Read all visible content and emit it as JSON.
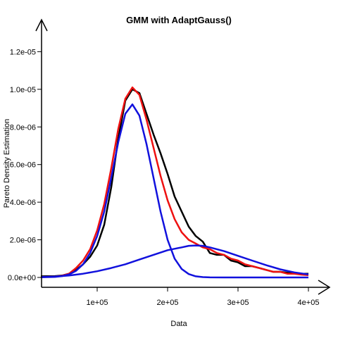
{
  "chart_data": {
    "type": "line",
    "title": "GMM with AdaptGauss()",
    "xlabel": "Data",
    "ylabel": "Pareto Density Estimation",
    "xlim": [
      20000,
      400000
    ],
    "ylim": [
      0,
      1.28e-05
    ],
    "x_ticks": [
      {
        "value": 100000,
        "label": "1e+05"
      },
      {
        "value": 200000,
        "label": "2e+05"
      },
      {
        "value": 300000,
        "label": "3e+05"
      },
      {
        "value": 400000,
        "label": "4e+05"
      }
    ],
    "y_ticks": [
      {
        "value": 0,
        "label": "0.0e+00"
      },
      {
        "value": 2e-06,
        "label": "2.0e-06"
      },
      {
        "value": 4e-06,
        "label": "4.0e-06"
      },
      {
        "value": 6e-06,
        "label": "6.0e-06"
      },
      {
        "value": 8e-06,
        "label": "8.0e-06"
      },
      {
        "value": 1e-05,
        "label": "1.0e-05"
      },
      {
        "value": 1.2e-05,
        "label": "1.2e-05"
      }
    ],
    "grid": false,
    "legend": "none",
    "series": [
      {
        "color": "#000000",
        "points": [
          [
            20000,
            6e-08
          ],
          [
            40000,
            7e-08
          ],
          [
            50000,
            1e-07
          ],
          [
            60000,
            2e-07
          ],
          [
            70000,
            4e-07
          ],
          [
            80000,
            7e-07
          ],
          [
            90000,
            1.1e-06
          ],
          [
            100000,
            1.7e-06
          ],
          [
            110000,
            2.8e-06
          ],
          [
            120000,
            4.8e-06
          ],
          [
            130000,
            7.4e-06
          ],
          [
            140000,
            9.4e-06
          ],
          [
            150000,
            1e-05
          ],
          [
            160000,
            9.8e-06
          ],
          [
            170000,
            8.7e-06
          ],
          [
            180000,
            7.6e-06
          ],
          [
            190000,
            6.6e-06
          ],
          [
            200000,
            5.5e-06
          ],
          [
            210000,
            4.3e-06
          ],
          [
            220000,
            3.5e-06
          ],
          [
            230000,
            2.7e-06
          ],
          [
            240000,
            2.2e-06
          ],
          [
            250000,
            1.9e-06
          ],
          [
            260000,
            1.3e-06
          ],
          [
            270000,
            1.2e-06
          ],
          [
            280000,
            1.2e-06
          ],
          [
            290000,
            9e-07
          ],
          [
            300000,
            8e-07
          ],
          [
            310000,
            6e-07
          ],
          [
            320000,
            6e-07
          ],
          [
            330000,
            5e-07
          ],
          [
            340000,
            4e-07
          ],
          [
            350000,
            3e-07
          ],
          [
            360000,
            3e-07
          ],
          [
            370000,
            2.5e-07
          ],
          [
            380000,
            2.2e-07
          ],
          [
            390000,
            2e-07
          ],
          [
            400000,
            2e-07
          ]
        ]
      },
      {
        "color": "#ee1111",
        "points": [
          [
            20000,
            2e-08
          ],
          [
            40000,
            4e-08
          ],
          [
            50000,
            9e-08
          ],
          [
            60000,
            2e-07
          ],
          [
            70000,
            5e-07
          ],
          [
            80000,
            9e-07
          ],
          [
            90000,
            1.5e-06
          ],
          [
            100000,
            2.5e-06
          ],
          [
            110000,
            3.9e-06
          ],
          [
            120000,
            5.8e-06
          ],
          [
            130000,
            7.9e-06
          ],
          [
            140000,
            9.5e-06
          ],
          [
            150000,
            1.01e-05
          ],
          [
            160000,
            9.7e-06
          ],
          [
            170000,
            8.4e-06
          ],
          [
            180000,
            6.9e-06
          ],
          [
            190000,
            5.4e-06
          ],
          [
            200000,
            4.1e-06
          ],
          [
            210000,
            3.1e-06
          ],
          [
            220000,
            2.4e-06
          ],
          [
            230000,
            2e-06
          ],
          [
            240000,
            1.8e-06
          ],
          [
            250000,
            1.6e-06
          ],
          [
            260000,
            1.5e-06
          ],
          [
            270000,
            1.3e-06
          ],
          [
            280000,
            1.2e-06
          ],
          [
            290000,
            1e-06
          ],
          [
            300000,
            9e-07
          ],
          [
            310000,
            7e-07
          ],
          [
            320000,
            6e-07
          ],
          [
            330000,
            5e-07
          ],
          [
            340000,
            4e-07
          ],
          [
            350000,
            3e-07
          ],
          [
            360000,
            3e-07
          ],
          [
            370000,
            2e-07
          ],
          [
            380000,
            2e-07
          ],
          [
            390000,
            1.5e-07
          ],
          [
            400000,
            1.2e-07
          ]
        ]
      },
      {
        "color": "#1111dd",
        "points": [
          [
            20000,
            1e-08
          ],
          [
            40000,
            3e-08
          ],
          [
            50000,
            7e-08
          ],
          [
            60000,
            1.6e-07
          ],
          [
            70000,
            3.5e-07
          ],
          [
            80000,
            7e-07
          ],
          [
            90000,
            1.3e-06
          ],
          [
            100000,
            2.2e-06
          ],
          [
            110000,
            3.5e-06
          ],
          [
            120000,
            5.3e-06
          ],
          [
            130000,
            7.2e-06
          ],
          [
            140000,
            8.7e-06
          ],
          [
            150000,
            9.2e-06
          ],
          [
            160000,
            8.6e-06
          ],
          [
            170000,
            7.1e-06
          ],
          [
            180000,
            5.3e-06
          ],
          [
            190000,
            3.5e-06
          ],
          [
            200000,
            2e-06
          ],
          [
            210000,
            1e-06
          ],
          [
            220000,
            4.5e-07
          ],
          [
            230000,
            1.8e-07
          ],
          [
            240000,
            6e-08
          ],
          [
            250000,
            2e-08
          ],
          [
            260000,
            5e-09
          ],
          [
            280000,
            0
          ],
          [
            400000,
            0
          ]
        ]
      },
      {
        "color": "#1111dd",
        "points": [
          [
            20000,
            2e-08
          ],
          [
            40000,
            5e-08
          ],
          [
            60000,
            1e-07
          ],
          [
            80000,
            2e-07
          ],
          [
            100000,
            3.3e-07
          ],
          [
            120000,
            5e-07
          ],
          [
            140000,
            7e-07
          ],
          [
            160000,
            9.5e-07
          ],
          [
            180000,
            1.2e-06
          ],
          [
            200000,
            1.45e-06
          ],
          [
            220000,
            1.6e-06
          ],
          [
            230000,
            1.68e-06
          ],
          [
            240000,
            1.7e-06
          ],
          [
            250000,
            1.68e-06
          ],
          [
            260000,
            1.6e-06
          ],
          [
            280000,
            1.4e-06
          ],
          [
            300000,
            1.15e-06
          ],
          [
            320000,
            9e-07
          ],
          [
            340000,
            6.5e-07
          ],
          [
            360000,
            4.3e-07
          ],
          [
            380000,
            2.7e-07
          ],
          [
            400000,
            1.6e-07
          ]
        ]
      }
    ]
  }
}
